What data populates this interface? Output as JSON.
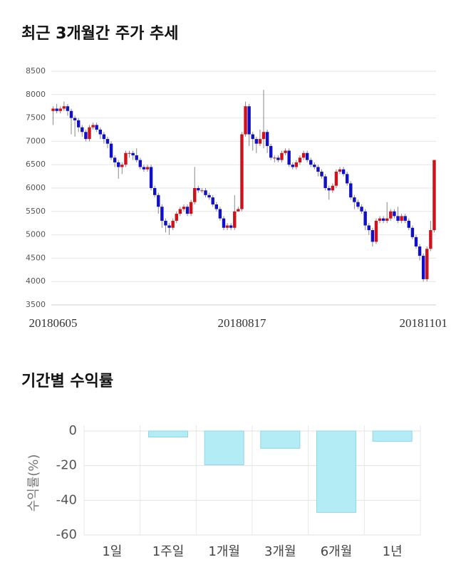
{
  "chart_data": [
    {
      "type": "candlestick",
      "title": "최근 3개월간 주가 추세",
      "categories": [
        "20180605",
        null,
        null,
        null,
        null,
        null,
        null,
        null,
        null,
        null,
        null,
        null,
        null,
        null,
        null,
        null,
        null,
        null,
        null,
        null,
        null,
        null,
        null,
        null,
        null,
        null,
        null,
        null,
        null,
        null,
        null,
        null,
        null,
        null,
        null,
        null,
        null,
        null,
        null,
        null,
        null,
        null,
        null,
        null,
        null,
        null,
        null,
        null,
        null,
        null,
        null,
        null,
        "20180817",
        null,
        null,
        null,
        null,
        null,
        null,
        null,
        null,
        null,
        null,
        null,
        null,
        null,
        null,
        null,
        null,
        null,
        null,
        null,
        null,
        null,
        null,
        null,
        null,
        null,
        null,
        null,
        null,
        null,
        null,
        null,
        null,
        null,
        null,
        null,
        null,
        null,
        null,
        null,
        null,
        null,
        null,
        null,
        null,
        null,
        null,
        null,
        null,
        null,
        "20181101",
        null,
        null,
        null
      ],
      "open": [
        7650,
        7700,
        7650,
        7700,
        7750,
        7650,
        7500,
        7450,
        7300,
        7200,
        7050,
        7300,
        7350,
        7250,
        7150,
        7050,
        6950,
        6650,
        6550,
        6450,
        6500,
        6750,
        6750,
        6700,
        6600,
        6450,
        6400,
        6450,
        6000,
        5850,
        5600,
        5300,
        5200,
        5150,
        5300,
        5450,
        5550,
        5600,
        5450,
        5700,
        6000,
        5950,
        5950,
        5850,
        5800,
        5650,
        5550,
        5350,
        5150,
        5200,
        5150,
        5500,
        5550,
        7150,
        7750,
        7150,
        7050,
        6950,
        7050,
        7200,
        6900,
        6650,
        6650,
        6600,
        6750,
        6800,
        6500,
        6450,
        6550,
        6650,
        6750,
        6600,
        6500,
        6450,
        6350,
        6250,
        6000,
        5950,
        6050,
        6350,
        6400,
        6300,
        6100,
        5800,
        5700,
        5600,
        5500,
        5200,
        5100,
        4850,
        5300,
        5350,
        5300,
        5350,
        5500,
        5400,
        5300,
        5400,
        5300,
        5150,
        4950,
        4750,
        4550,
        4050,
        4700,
        5100
      ],
      "high": [
        7750,
        7800,
        7750,
        7850,
        7800,
        7700,
        7550,
        7500,
        7350,
        7250,
        7350,
        7400,
        7400,
        7300,
        7200,
        7100,
        7000,
        6700,
        6600,
        6550,
        6800,
        6800,
        6800,
        6850,
        6650,
        6500,
        6500,
        6500,
        6050,
        5900,
        5650,
        5350,
        5250,
        5350,
        5500,
        5600,
        5650,
        5650,
        5750,
        6450,
        6050,
        6000,
        6000,
        5900,
        5850,
        5700,
        5600,
        5400,
        5250,
        5250,
        5850,
        5600,
        7200,
        7850,
        7800,
        7200,
        7100,
        7250,
        8100,
        7250,
        6950,
        6700,
        6700,
        6800,
        6850,
        6850,
        6550,
        6600,
        6700,
        6800,
        6800,
        6650,
        6550,
        6500,
        6400,
        6300,
        6050,
        6100,
        6400,
        6450,
        6450,
        6350,
        6150,
        5850,
        5750,
        5650,
        5550,
        5250,
        5150,
        5350,
        5400,
        5400,
        5700,
        5550,
        5550,
        5600,
        5450,
        5450,
        5350,
        5200,
        5000,
        4800,
        4600,
        4750,
        5300,
        6600
      ],
      "low": [
        7350,
        7600,
        7600,
        7650,
        7550,
        7150,
        7100,
        7200,
        7100,
        7000,
        7000,
        7250,
        7200,
        7050,
        6950,
        6850,
        6600,
        6450,
        6200,
        6300,
        6450,
        6650,
        6600,
        6550,
        6400,
        6350,
        6350,
        5950,
        5800,
        5450,
        5150,
        5050,
        5000,
        5100,
        5250,
        5400,
        5500,
        5400,
        5400,
        5650,
        5900,
        5900,
        5800,
        5750,
        5600,
        5500,
        5300,
        5100,
        5100,
        5100,
        5100,
        5500,
        5500,
        7100,
        6900,
        6800,
        6750,
        6900,
        6850,
        6750,
        6600,
        6550,
        6550,
        6550,
        6700,
        6450,
        6400,
        6400,
        6500,
        6600,
        6550,
        6450,
        6400,
        6250,
        6200,
        5950,
        5750,
        5900,
        6000,
        6300,
        6250,
        6050,
        5750,
        5550,
        5550,
        5450,
        5100,
        5000,
        4750,
        4800,
        5250,
        5250,
        5250,
        5300,
        5350,
        5250,
        5250,
        5250,
        5100,
        4900,
        4700,
        4450,
        4000,
        4000,
        4650,
        5050
      ],
      "close": [
        7700,
        7650,
        7700,
        7750,
        7650,
        7500,
        7450,
        7300,
        7200,
        7050,
        7300,
        7350,
        7250,
        7150,
        7050,
        6950,
        6650,
        6550,
        6450,
        6500,
        6750,
        6750,
        6700,
        6600,
        6450,
        6400,
        6450,
        6000,
        5850,
        5600,
        5300,
        5200,
        5150,
        5300,
        5450,
        5550,
        5600,
        5450,
        5700,
        6000,
        5950,
        5950,
        5850,
        5800,
        5650,
        5550,
        5350,
        5150,
        5200,
        5150,
        5500,
        5550,
        7150,
        7750,
        7150,
        7050,
        6950,
        7050,
        7200,
        6900,
        6650,
        6650,
        6600,
        6750,
        6800,
        6500,
        6450,
        6550,
        6650,
        6750,
        6600,
        6500,
        6450,
        6350,
        6250,
        6000,
        5950,
        6050,
        6350,
        6400,
        6300,
        6100,
        5800,
        5700,
        5600,
        5500,
        5200,
        5100,
        4850,
        5300,
        5350,
        5300,
        5350,
        5500,
        5400,
        5300,
        5400,
        5300,
        5150,
        4950,
        4750,
        4550,
        4050,
        4700,
        5100,
        6600
      ],
      "up_color": "#d0101a",
      "down_color": "#1010c8",
      "ylim": [
        3500,
        8500
      ],
      "yticks": [
        3500,
        4000,
        4500,
        5000,
        5500,
        6000,
        6500,
        7000,
        7500,
        8000,
        8500
      ],
      "grid": true
    },
    {
      "type": "bar",
      "title": "기간별 수익률",
      "ylabel": "수익률(%)",
      "categories": [
        "1일",
        "1주일",
        "1개월",
        "3개월",
        "6개월",
        "1년"
      ],
      "values": [
        0,
        -3.5,
        -19.5,
        -10,
        -47,
        -6
      ],
      "color": "#b4ecf5",
      "ylim": [
        -60,
        0
      ],
      "yticks": [
        0,
        -20,
        -40,
        -60
      ],
      "grid": true
    }
  ]
}
